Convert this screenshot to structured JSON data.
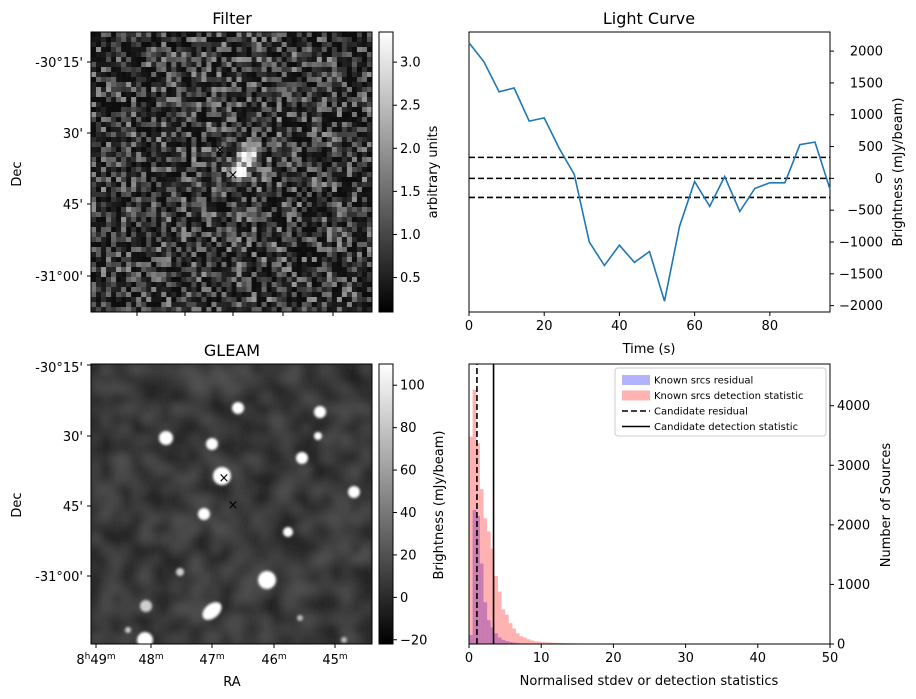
{
  "panels": {
    "filter": {
      "title": "Filter",
      "ylabel": "Dec",
      "dec_ticks": [
        "-30°15'",
        "30'",
        "45'",
        "-31°00'"
      ],
      "colorbar_label": "arbitrary units",
      "colorbar_ticks": [
        "0.5",
        "1.0",
        "1.5",
        "2.0",
        "2.5",
        "3.0"
      ],
      "colorbar_range": [
        0.1,
        3.35
      ],
      "colormap": [
        "#000000",
        "#ffffff"
      ]
    },
    "gleam": {
      "title": "GLEAM",
      "ylabel": "Dec",
      "xlabel": "RA",
      "dec_ticks": [
        "-30°15'",
        "30'",
        "45'",
        "-31°00'"
      ],
      "ra_ticks": [
        {
          "h": "8",
          "m": "49"
        },
        {
          "h": "",
          "m": "48"
        },
        {
          "h": "",
          "m": "47"
        },
        {
          "h": "",
          "m": "46"
        },
        {
          "h": "",
          "m": "45"
        }
      ],
      "colorbar_label": "Brightness (mJy/beam)",
      "colorbar_ticks": [
        "−20",
        "0",
        "20",
        "40",
        "60",
        "80",
        "100"
      ],
      "colorbar_range": [
        -22,
        110
      ],
      "colormap": [
        "#000000",
        "#ffffff"
      ]
    },
    "markers": {
      "candidate_color": "#0000ff",
      "known_color": "#ff0000",
      "symbol": "×"
    }
  },
  "chart_data": [
    {
      "id": "light_curve",
      "type": "line",
      "title": "Light Curve",
      "xlabel": "Time (s)",
      "ylabel": "Brightness (mJy/beam)",
      "xlim": [
        0,
        96
      ],
      "ylim": [
        -2100,
        2300
      ],
      "x_ticks": [
        "0",
        "20",
        "40",
        "60",
        "80"
      ],
      "y_ticks": [
        "−2000",
        "−1500",
        "−1000",
        "−500",
        "0",
        "500",
        "1000",
        "1500",
        "2000"
      ],
      "y_axis_side": "right",
      "line_color": "#1f77b4",
      "x": [
        0,
        4,
        8,
        12,
        16,
        20,
        24,
        28,
        32,
        36,
        40,
        44,
        48,
        52,
        56,
        60,
        64,
        68,
        72,
        76,
        80,
        84,
        88,
        92,
        96
      ],
      "y": [
        2130,
        1830,
        1360,
        1420,
        900,
        950,
        470,
        60,
        -1000,
        -1370,
        -1050,
        -1320,
        -1150,
        -1930,
        -750,
        -50,
        -440,
        30,
        -520,
        -160,
        -70,
        -70,
        530,
        570,
        -170
      ],
      "hlines": [
        {
          "y": 330,
          "style": "dashed",
          "color": "#000000"
        },
        {
          "y": 0,
          "style": "dashed",
          "color": "#000000"
        },
        {
          "y": -300,
          "style": "dashed",
          "color": "#000000"
        }
      ]
    },
    {
      "id": "histogram",
      "type": "bar",
      "xlabel": "Normalised stdev or detection statistics",
      "ylabel_left": "Brightness (mJy/beam)",
      "ylabel_right": "Number of Sources",
      "xlim": [
        0,
        50
      ],
      "ylim": [
        0,
        4700
      ],
      "x_ticks": [
        "0",
        "10",
        "20",
        "30",
        "40",
        "50"
      ],
      "y_ticks": [
        "0",
        "1000",
        "2000",
        "3000",
        "4000"
      ],
      "y_axis_side": "right",
      "bin_width": 0.5,
      "series": [
        {
          "name": "Known srcs residual",
          "color": "#0000ff",
          "opacity": 0.3,
          "values": [
            150,
            2250,
            2150,
            1350,
            700,
            400,
            280,
            180,
            110,
            70,
            50,
            35,
            25,
            15,
            10,
            8,
            5,
            3
          ]
        },
        {
          "name": "Known srcs detection statistic",
          "color": "#ff0000",
          "opacity": 0.3,
          "values": [
            3480,
            4270,
            3370,
            2600,
            2110,
            1890,
            1600,
            1140,
            880,
            580,
            490,
            350,
            260,
            180,
            130,
            110,
            80,
            60,
            45,
            40,
            30,
            28,
            25,
            22,
            20,
            18,
            15,
            14,
            12,
            10,
            10,
            9,
            8,
            8,
            7,
            7,
            6,
            6,
            5,
            5,
            5,
            4,
            4,
            4,
            3,
            3,
            3,
            3,
            3,
            3,
            2,
            2,
            2,
            2,
            2,
            2,
            2,
            2,
            2,
            2,
            2,
            2,
            2,
            2,
            2,
            2,
            2,
            2,
            2,
            2,
            2,
            2,
            2,
            2,
            2,
            2,
            2,
            2,
            2,
            2,
            2,
            2,
            2,
            2,
            2,
            2,
            2,
            2,
            2,
            2,
            2,
            2,
            2,
            2,
            2,
            8
          ]
        }
      ],
      "vlines": [
        {
          "name": "Candidate residual",
          "x": 1.1,
          "style": "dashed",
          "color": "#000000"
        },
        {
          "name": "Candidate detection statistic",
          "x": 3.4,
          "style": "solid",
          "color": "#000000"
        }
      ],
      "legend_position": "top-right"
    }
  ]
}
